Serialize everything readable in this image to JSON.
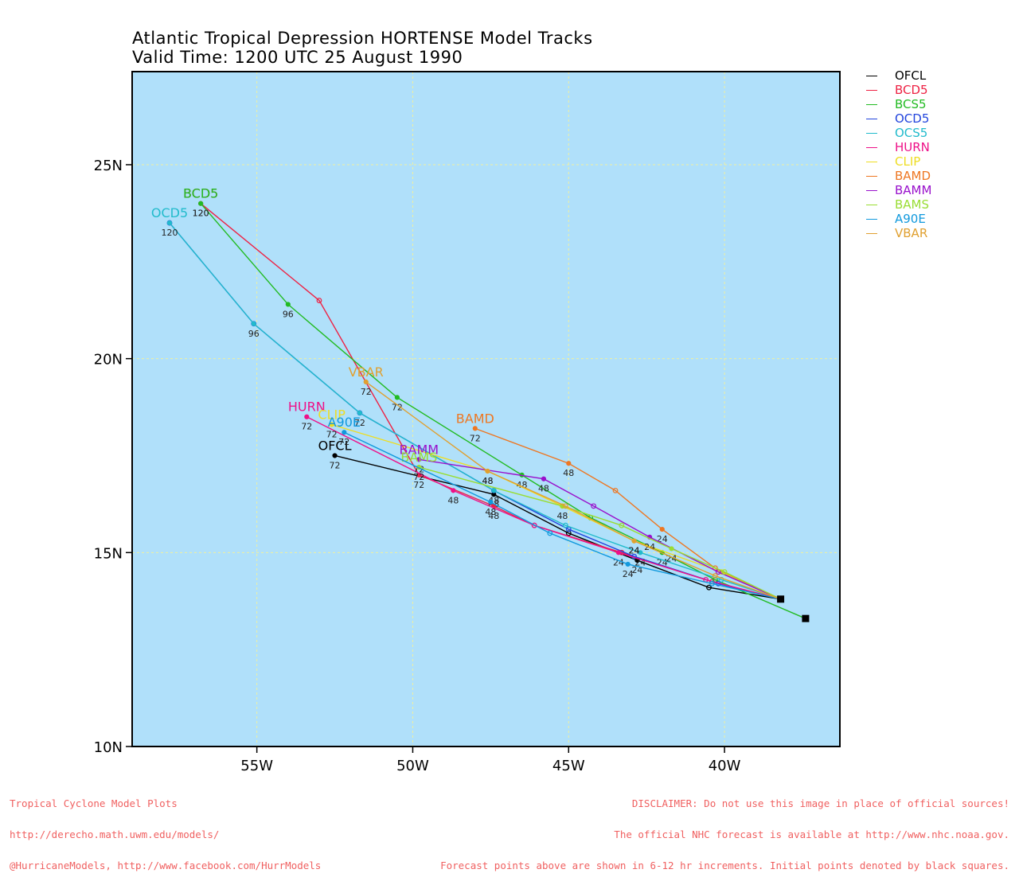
{
  "title_line1": "Atlantic Tropical Depression HORTENSE Model Tracks",
  "title_line2": "Valid Time: 1200 UTC 25 August 1990",
  "footer": {
    "left": [
      "Tropical Cyclone Model Plots",
      "http://derecho.math.uwm.edu/models/",
      "@HurricaneModels, http://www.facebook.com/HurrModels"
    ],
    "right": [
      "DISCLAIMER: Do not use this image in place of official sources!",
      "The official NHC forecast is available at http://www.nhc.noaa.gov.",
      "Forecast points above are shown in 6-12 hr increments. Initial points denoted by black squares."
    ]
  },
  "chart_data": {
    "type": "line",
    "plot_background": "#b0e0fa",
    "gridlines": true,
    "grid_color": "#f0f0a0",
    "legend_position": "top-right, outside plot",
    "xlim": [
      -59,
      -36.3
    ],
    "ylim": [
      10,
      27.4
    ],
    "x_ticks": [
      {
        "value": -55,
        "label": "55W"
      },
      {
        "value": -50,
        "label": "50W"
      },
      {
        "value": -45,
        "label": "45W"
      },
      {
        "value": -40,
        "label": "40W"
      }
    ],
    "y_ticks": [
      {
        "value": 10,
        "label": "10N"
      },
      {
        "value": 15,
        "label": "15N"
      },
      {
        "value": 20,
        "label": "20N"
      },
      {
        "value": 25,
        "label": "25N"
      }
    ],
    "initial_points": [
      {
        "lon": -38.2,
        "lat": 13.8
      },
      {
        "lon": -37.4,
        "lat": 13.3
      }
    ],
    "series": [
      {
        "name": "OFCL",
        "color": "#000000",
        "label_at_end": "OFCL",
        "points": [
          {
            "lon": -38.2,
            "lat": 13.8
          },
          {
            "lon": -40.5,
            "lat": 14.1
          },
          {
            "lon": -42.8,
            "lat": 14.8,
            "tag": "24"
          },
          {
            "lon": -45,
            "lat": 15.5
          },
          {
            "lon": -47.4,
            "lat": 16.5,
            "tag": "48"
          },
          {
            "lon": -52.5,
            "lat": 17.5,
            "tag": "72"
          }
        ]
      },
      {
        "name": "BCD5",
        "color": "#ee2244",
        "label_at_end": "BCD5",
        "points": [
          {
            "lon": -38.2,
            "lat": 13.8
          },
          {
            "lon": -40.4,
            "lat": 14.25
          },
          {
            "lon": -43.3,
            "lat": 15
          },
          {
            "lon": -46.1,
            "lat": 15.7
          },
          {
            "lon": -47.4,
            "lat": 16.2,
            "tag": "48"
          },
          {
            "lon": -49.8,
            "lat": 17.0,
            "tag": "72"
          },
          {
            "lon": -53,
            "lat": 21.5
          },
          {
            "lon": -56.8,
            "lat": 24,
            "tag": "120"
          }
        ]
      },
      {
        "name": "BCS5",
        "color": "#22bb22",
        "label_at_end": "BCD5",
        "points": [
          {
            "lon": -37.4,
            "lat": 13.3
          },
          {
            "lon": -40.3,
            "lat": 14.3
          },
          {
            "lon": -42.0,
            "lat": 15.0,
            "tag": "24"
          },
          {
            "lon": -44.3,
            "lat": 15.9
          },
          {
            "lon": -46.5,
            "lat": 17.0,
            "tag": "48"
          },
          {
            "lon": -50.5,
            "lat": 19.0,
            "tag": "72"
          },
          {
            "lon": -54.0,
            "lat": 21.4,
            "tag": "96"
          },
          {
            "lon": -56.8,
            "lat": 24.0,
            "tag": "120"
          }
        ]
      },
      {
        "name": "OCD5",
        "color": "#2244dd",
        "label_at_end": "",
        "points": [
          {
            "lon": -38.2,
            "lat": 13.8
          },
          {
            "lon": -40.2,
            "lat": 14.2
          },
          {
            "lon": -42.9,
            "lat": 14.9
          },
          {
            "lon": -45.0,
            "lat": 15.6
          },
          {
            "lon": -47.4,
            "lat": 16.6
          },
          {
            "lon": -51.7,
            "lat": 18.6
          },
          {
            "lon": -55.1,
            "lat": 20.9
          },
          {
            "lon": -57.8,
            "lat": 23.5
          }
        ]
      },
      {
        "name": "OCS5",
        "color": "#22bbcc",
        "label_at_end": "OCD5",
        "points": [
          {
            "lon": -38.2,
            "lat": 13.8
          },
          {
            "lon": -40.1,
            "lat": 14.3
          },
          {
            "lon": -42.7,
            "lat": 15.0,
            "tag": "24"
          },
          {
            "lon": -45.1,
            "lat": 15.7
          },
          {
            "lon": -47.4,
            "lat": 16.6,
            "tag": "48"
          },
          {
            "lon": -51.7,
            "lat": 18.6,
            "tag": "72"
          },
          {
            "lon": -55.1,
            "lat": 20.9,
            "tag": "96"
          },
          {
            "lon": -57.8,
            "lat": 23.5,
            "tag": "120"
          }
        ]
      },
      {
        "name": "HURN",
        "color": "#ee1188",
        "label_at_end": "HURN",
        "points": [
          {
            "lon": -38.2,
            "lat": 13.8
          },
          {
            "lon": -40.6,
            "lat": 14.3
          },
          {
            "lon": -43.4,
            "lat": 15.0,
            "tag": "24"
          },
          {
            "lon": -46.1,
            "lat": 15.7
          },
          {
            "lon": -48.7,
            "lat": 16.6,
            "tag": "48"
          },
          {
            "lon": -53.4,
            "lat": 18.5,
            "tag": "72"
          }
        ]
      },
      {
        "name": "CLIP",
        "color": "#eedd22",
        "label_at_end": "CLIP",
        "points": [
          {
            "lon": -38.2,
            "lat": 13.8
          },
          {
            "lon": -40.1,
            "lat": 14.5
          },
          {
            "lon": -42.9,
            "lat": 15.3,
            "tag": "24"
          },
          {
            "lon": -45.2,
            "lat": 16.2
          },
          {
            "lon": -47.6,
            "lat": 17.1,
            "tag": "48"
          },
          {
            "lon": -52.6,
            "lat": 18.3,
            "tag": "72"
          }
        ]
      },
      {
        "name": "BAMD",
        "color": "#ee7722",
        "label_at_end": "BAMD",
        "points": [
          {
            "lon": -38.2,
            "lat": 13.8
          },
          {
            "lon": -40.3,
            "lat": 14.6
          },
          {
            "lon": -42.0,
            "lat": 15.6,
            "tag": "24"
          },
          {
            "lon": -43.5,
            "lat": 16.6
          },
          {
            "lon": -45.0,
            "lat": 17.3,
            "tag": "48"
          },
          {
            "lon": -48.0,
            "lat": 18.2,
            "tag": "72"
          }
        ]
      },
      {
        "name": "BAMM",
        "color": "#9911cc",
        "label_at_end": "BAMM",
        "points": [
          {
            "lon": -38.2,
            "lat": 13.8
          },
          {
            "lon": -40.2,
            "lat": 14.5
          },
          {
            "lon": -42.4,
            "lat": 15.4,
            "tag": "24"
          },
          {
            "lon": -44.2,
            "lat": 16.2
          },
          {
            "lon": -45.8,
            "lat": 16.9,
            "tag": "48"
          },
          {
            "lon": -49.8,
            "lat": 17.4,
            "tag": "72"
          }
        ]
      },
      {
        "name": "BAMS",
        "color": "#99dd33",
        "label_at_end": "BAMS",
        "points": [
          {
            "lon": -38.2,
            "lat": 13.8
          },
          {
            "lon": -40.0,
            "lat": 14.5
          },
          {
            "lon": -41.7,
            "lat": 15.1,
            "tag": "24"
          },
          {
            "lon": -43.3,
            "lat": 15.7
          },
          {
            "lon": -45.2,
            "lat": 16.2,
            "tag": "48"
          },
          {
            "lon": -49.8,
            "lat": 17.2,
            "tag": "72"
          }
        ]
      },
      {
        "name": "A90E",
        "color": "#1199dd",
        "label_at_end": "A90E",
        "points": [
          {
            "lon": -38.2,
            "lat": 13.8
          },
          {
            "lon": -40.4,
            "lat": 14.2
          },
          {
            "lon": -43.1,
            "lat": 14.7,
            "tag": "24"
          },
          {
            "lon": -45.6,
            "lat": 15.5
          },
          {
            "lon": -47.5,
            "lat": 16.3,
            "tag": "48"
          },
          {
            "lon": -52.2,
            "lat": 18.1,
            "tag": "72"
          }
        ]
      },
      {
        "name": "VBAR",
        "color": "#e0a030",
        "label_at_end": "VBAR",
        "points": [
          {
            "lon": -38.2,
            "lat": 13.8
          },
          {
            "lon": -40.3,
            "lat": 14.4
          },
          {
            "lon": -42.9,
            "lat": 15.3,
            "tag": "24"
          },
          {
            "lon": -45.1,
            "lat": 16.2
          },
          {
            "lon": -47.6,
            "lat": 17.1,
            "tag": "48"
          },
          {
            "lon": -51.5,
            "lat": 19.4,
            "tag": "72"
          }
        ]
      }
    ],
    "end_label_offsets_note": ""
  }
}
